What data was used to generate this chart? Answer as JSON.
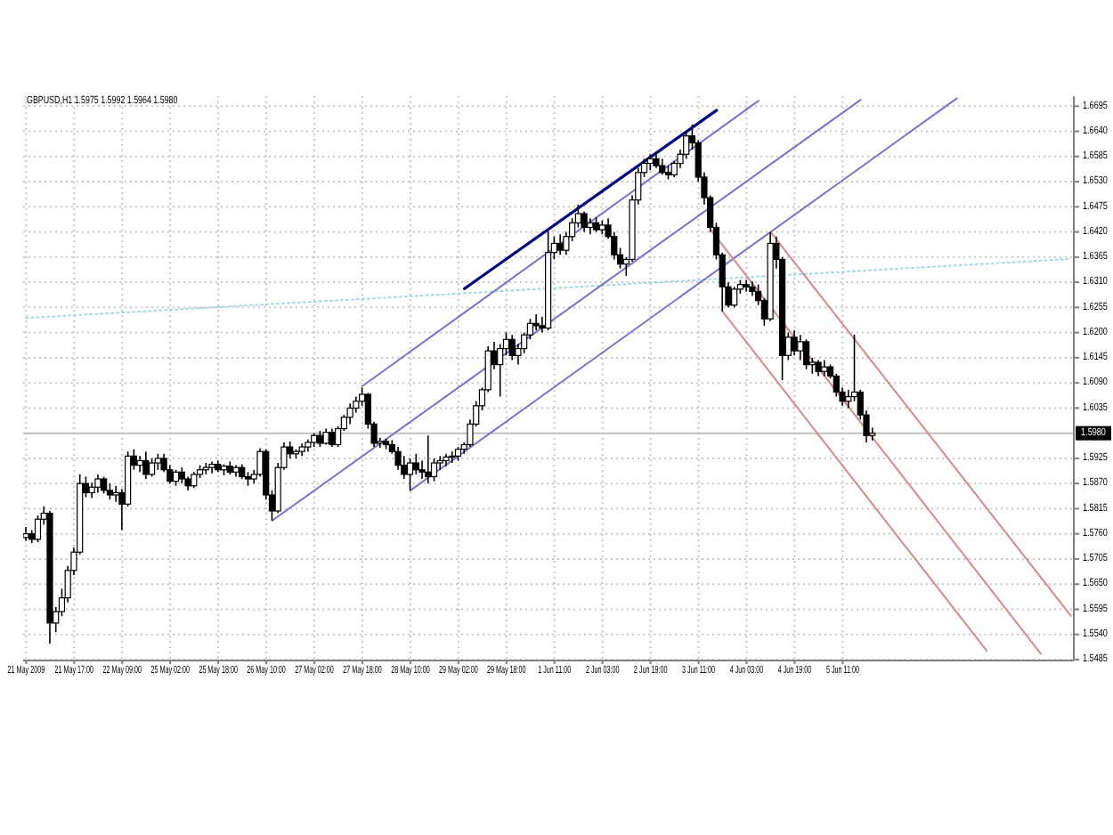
{
  "chart_data": {
    "type": "candlestick",
    "title": "GBPUSD,H1 1.5975 1.5992 1.5964 1.5980",
    "color": "#000000",
    "grid": true,
    "ylim": [
      1.5483,
      1.6717
    ],
    "yticks": [
      1.6695,
      {
        "value": 1.664,
        "label": "1.6640"
      },
      1.6585,
      {
        "value": 1.653,
        "label": "1.6530"
      },
      1.6475,
      {
        "value": 1.642,
        "label": "1.6420"
      },
      1.6365,
      {
        "value": 1.631,
        "label": "1.6310"
      },
      1.6255,
      {
        "value": 1.62,
        "label": "1.6200"
      },
      1.6145,
      {
        "value": 1.609,
        "label": "1.6090"
      },
      1.6035,
      1.5925,
      {
        "value": 1.587,
        "label": "1.5870"
      },
      1.5815,
      {
        "value": 1.576,
        "label": "1.5760"
      },
      1.5705,
      {
        "value": 1.565,
        "label": "1.5650"
      },
      1.5595,
      {
        "value": 1.554,
        "label": "1.5540"
      },
      1.5485
    ],
    "ref_lines": [
      {
        "axis": "y",
        "value": 1.598,
        "label": "1.5980",
        "color": "#c0c0c0"
      }
    ],
    "categories": [
      "21 May 2009",
      null,
      null,
      null,
      null,
      null,
      null,
      null,
      "21 May 17:00",
      null,
      null,
      null,
      null,
      null,
      null,
      null,
      "22 May 09:00",
      null,
      null,
      null,
      null,
      null,
      null,
      null,
      "25 May 02:00",
      null,
      null,
      null,
      null,
      null,
      null,
      null,
      "25 May 18:00",
      null,
      null,
      null,
      null,
      null,
      null,
      null,
      "26 May 10:00",
      null,
      null,
      null,
      null,
      null,
      null,
      null,
      "27 May 02:00",
      null,
      null,
      null,
      null,
      null,
      null,
      null,
      "27 May 18:00",
      null,
      null,
      null,
      null,
      null,
      null,
      null,
      "28 May 10:00",
      null,
      null,
      null,
      null,
      null,
      null,
      null,
      "29 May 02:00",
      null,
      null,
      null,
      null,
      null,
      null,
      null,
      "29 May 18:00",
      null,
      null,
      null,
      null,
      null,
      null,
      null,
      "1 Jun 11:00",
      null,
      null,
      null,
      null,
      null,
      null,
      null,
      "2 Jun 03:00",
      null,
      null,
      null,
      null,
      null,
      null,
      null,
      "2 Jun 19:00",
      null,
      null,
      null,
      null,
      null,
      null,
      null,
      "3 Jun 11:00",
      null,
      null,
      null,
      null,
      null,
      null,
      null,
      "4 Jun 03:00",
      null,
      null,
      null,
      null,
      null,
      null,
      null,
      "4 Jun 19:00",
      null,
      null,
      null,
      null,
      null,
      null,
      null,
      "5 Jun 11:00",
      null,
      null,
      null,
      null,
      null,
      null,
      null,
      null,
      null,
      null,
      null,
      null,
      null,
      null,
      null,
      null,
      null,
      null,
      null,
      null,
      null,
      null,
      null,
      null,
      null,
      null,
      null,
      null,
      null,
      null,
      null,
      null,
      null,
      null,
      null,
      null,
      null,
      null
    ],
    "ohlc": [
      [
        1.5752,
        1.5775,
        1.5745,
        1.576
      ],
      [
        1.576,
        1.5768,
        1.574,
        1.5748
      ],
      [
        1.5748,
        1.58,
        1.5742,
        1.5792
      ],
      [
        1.5792,
        1.582,
        1.578,
        1.5805
      ],
      [
        1.5805,
        1.581,
        1.552,
        1.5565
      ],
      [
        1.5565,
        1.56,
        1.5545,
        1.559
      ],
      [
        1.559,
        1.564,
        1.558,
        1.562
      ],
      [
        1.562,
        1.569,
        1.561,
        1.568
      ],
      [
        1.568,
        1.573,
        1.567,
        1.572
      ],
      [
        1.572,
        1.589,
        1.5715,
        1.587
      ],
      [
        1.587,
        1.5885,
        1.584,
        1.585
      ],
      [
        1.585,
        1.5872,
        1.5838,
        1.5862
      ],
      [
        1.5862,
        1.589,
        1.585,
        1.588
      ],
      [
        1.588,
        1.5885,
        1.5848,
        1.5855
      ],
      [
        1.5855,
        1.587,
        1.5835,
        1.5845
      ],
      [
        1.5845,
        1.5865,
        1.583,
        1.585
      ],
      [
        1.585,
        1.5858,
        1.5768,
        1.5825
      ],
      [
        1.5825,
        1.594,
        1.582,
        1.593
      ],
      [
        1.593,
        1.5945,
        1.59,
        1.591
      ],
      [
        1.591,
        1.593,
        1.5895,
        1.592
      ],
      [
        1.592,
        1.594,
        1.588,
        1.589
      ],
      [
        1.589,
        1.5925,
        1.5885,
        1.5915
      ],
      [
        1.5915,
        1.5935,
        1.59,
        1.5925
      ],
      [
        1.5925,
        1.5935,
        1.5895,
        1.59
      ],
      [
        1.59,
        1.591,
        1.587,
        1.5875
      ],
      [
        1.5875,
        1.59,
        1.5865,
        1.5895
      ],
      [
        1.5895,
        1.5905,
        1.587,
        1.588
      ],
      [
        1.588,
        1.5885,
        1.5855,
        1.5865
      ],
      [
        1.5865,
        1.5895,
        1.586,
        1.589
      ],
      [
        1.589,
        1.591,
        1.5882,
        1.59
      ],
      [
        1.59,
        1.5915,
        1.589,
        1.5905
      ],
      [
        1.5905,
        1.5918,
        1.5892,
        1.5912
      ],
      [
        1.5912,
        1.592,
        1.5895,
        1.59
      ],
      [
        1.59,
        1.5912,
        1.5888,
        1.5908
      ],
      [
        1.5908,
        1.5918,
        1.589,
        1.5895
      ],
      [
        1.5895,
        1.591,
        1.5885,
        1.5905
      ],
      [
        1.5905,
        1.5912,
        1.588,
        1.5885
      ],
      [
        1.5885,
        1.5895,
        1.5865,
        1.588
      ],
      [
        1.588,
        1.59,
        1.587,
        1.589
      ],
      [
        1.589,
        1.5947,
        1.5885,
        1.594
      ],
      [
        1.594,
        1.5945,
        1.5835,
        1.5845
      ],
      [
        1.5845,
        1.5855,
        1.5789,
        1.581
      ],
      [
        1.581,
        1.5915,
        1.5805,
        1.5905
      ],
      [
        1.5905,
        1.596,
        1.59,
        1.595
      ],
      [
        1.595,
        1.5962,
        1.5925,
        1.5935
      ],
      [
        1.5935,
        1.5945,
        1.5925,
        1.594
      ],
      [
        1.594,
        1.5958,
        1.593,
        1.595
      ],
      [
        1.595,
        1.5966,
        1.594,
        1.596
      ],
      [
        1.596,
        1.598,
        1.595,
        1.5975
      ],
      [
        1.5975,
        1.5985,
        1.595,
        1.5958
      ],
      [
        1.5958,
        1.599,
        1.5955,
        1.5982
      ],
      [
        1.5982,
        1.599,
        1.595,
        1.5955
      ],
      [
        1.5955,
        1.5995,
        1.595,
        1.599
      ],
      [
        1.599,
        1.602,
        1.5985,
        1.6015
      ],
      [
        1.6015,
        1.6045,
        1.6,
        1.6035
      ],
      [
        1.6035,
        1.606,
        1.6025,
        1.605
      ],
      [
        1.605,
        1.608,
        1.604,
        1.6065
      ],
      [
        1.6065,
        1.6068,
        1.599,
        1.6
      ],
      [
        1.6,
        1.6005,
        1.595,
        1.5958
      ],
      [
        1.5958,
        1.597,
        1.5948,
        1.5962
      ],
      [
        1.5962,
        1.5968,
        1.5945,
        1.5955
      ],
      [
        1.5955,
        1.5965,
        1.5935,
        1.594
      ],
      [
        1.594,
        1.595,
        1.59,
        1.591
      ],
      [
        1.591,
        1.593,
        1.588,
        1.589
      ],
      [
        1.589,
        1.5925,
        1.5855,
        1.5915
      ],
      [
        1.5915,
        1.5935,
        1.589,
        1.59
      ],
      [
        1.59,
        1.592,
        1.588,
        1.5895
      ],
      [
        1.5895,
        1.5975,
        1.587,
        1.5885
      ],
      [
        1.5885,
        1.5925,
        1.5875,
        1.5915
      ],
      [
        1.5915,
        1.593,
        1.59,
        1.592
      ],
      [
        1.592,
        1.5935,
        1.5908,
        1.5928
      ],
      [
        1.5928,
        1.594,
        1.5915,
        1.593
      ],
      [
        1.593,
        1.595,
        1.592,
        1.5945
      ],
      [
        1.5945,
        1.596,
        1.5935,
        1.5955
      ],
      [
        1.5955,
        1.601,
        1.595,
        1.6
      ],
      [
        1.6,
        1.605,
        1.5995,
        1.604
      ],
      [
        1.604,
        1.608,
        1.603,
        1.6075
      ],
      [
        1.6075,
        1.617,
        1.607,
        1.616
      ],
      [
        1.616,
        1.618,
        1.612,
        1.613
      ],
      [
        1.613,
        1.6175,
        1.606,
        1.6165
      ],
      [
        1.6165,
        1.62,
        1.615,
        1.6185
      ],
      [
        1.6185,
        1.6195,
        1.614,
        1.615
      ],
      [
        1.615,
        1.6175,
        1.613,
        1.6165
      ],
      [
        1.6165,
        1.62,
        1.6155,
        1.6195
      ],
      [
        1.6195,
        1.623,
        1.6185,
        1.622
      ],
      [
        1.622,
        1.624,
        1.6205,
        1.6215
      ],
      [
        1.6215,
        1.6235,
        1.62,
        1.621
      ],
      [
        1.621,
        1.6422,
        1.6205,
        1.6375
      ],
      [
        1.6375,
        1.641,
        1.636,
        1.6395
      ],
      [
        1.6395,
        1.6415,
        1.637,
        1.638
      ],
      [
        1.638,
        1.642,
        1.637,
        1.641
      ],
      [
        1.641,
        1.645,
        1.64,
        1.644
      ],
      [
        1.644,
        1.648,
        1.643,
        1.646
      ],
      [
        1.646,
        1.6465,
        1.642,
        1.643
      ],
      [
        1.643,
        1.645,
        1.6415,
        1.644
      ],
      [
        1.644,
        1.6452,
        1.642,
        1.6425
      ],
      [
        1.6425,
        1.6445,
        1.6415,
        1.6435
      ],
      [
        1.6435,
        1.645,
        1.6405,
        1.641
      ],
      [
        1.641,
        1.642,
        1.636,
        1.637
      ],
      [
        1.637,
        1.6385,
        1.634,
        1.635
      ],
      [
        1.635,
        1.6365,
        1.6324,
        1.636
      ],
      [
        1.636,
        1.65,
        1.6355,
        1.649
      ],
      [
        1.649,
        1.656,
        1.648,
        1.655
      ],
      [
        1.655,
        1.658,
        1.654,
        1.657
      ],
      [
        1.657,
        1.659,
        1.6555,
        1.658
      ],
      [
        1.658,
        1.6595,
        1.656,
        1.6565
      ],
      [
        1.6565,
        1.658,
        1.6545,
        1.655
      ],
      [
        1.655,
        1.6565,
        1.6535,
        1.6545
      ],
      [
        1.6545,
        1.6575,
        1.654,
        1.657
      ],
      [
        1.657,
        1.66,
        1.656,
        1.659
      ],
      [
        1.659,
        1.664,
        1.658,
        1.663
      ],
      [
        1.663,
        1.6655,
        1.66,
        1.6615
      ],
      [
        1.6615,
        1.662,
        1.653,
        1.654
      ],
      [
        1.654,
        1.655,
        1.648,
        1.6495
      ],
      [
        1.6495,
        1.65,
        1.642,
        1.643
      ],
      [
        1.643,
        1.644,
        1.636,
        1.637
      ],
      [
        1.637,
        1.6375,
        1.6246,
        1.63
      ],
      [
        1.63,
        1.631,
        1.6255,
        1.626
      ],
      [
        1.626,
        1.63,
        1.6255,
        1.6295
      ],
      [
        1.6295,
        1.6315,
        1.6285,
        1.6305
      ],
      [
        1.6305,
        1.6315,
        1.629,
        1.63
      ],
      [
        1.63,
        1.6312,
        1.628,
        1.629
      ],
      [
        1.629,
        1.6305,
        1.626,
        1.627
      ],
      [
        1.627,
        1.6275,
        1.6215,
        1.623
      ],
      [
        1.623,
        1.642,
        1.6225,
        1.6395
      ],
      [
        1.6395,
        1.641,
        1.634,
        1.636
      ],
      [
        1.636,
        1.6365,
        1.6096,
        1.615
      ],
      [
        1.615,
        1.62,
        1.614,
        1.619
      ],
      [
        1.619,
        1.6205,
        1.615,
        1.616
      ],
      [
        1.616,
        1.6195,
        1.614,
        1.618
      ],
      [
        1.618,
        1.6185,
        1.612,
        1.613
      ],
      [
        1.613,
        1.6145,
        1.611,
        1.6135
      ],
      [
        1.6135,
        1.614,
        1.6105,
        1.6115
      ],
      [
        1.6115,
        1.614,
        1.6105,
        1.6125
      ],
      [
        1.6125,
        1.613,
        1.61,
        1.6105
      ],
      [
        1.6105,
        1.611,
        1.606,
        1.607
      ],
      [
        1.607,
        1.608,
        1.604,
        1.605
      ],
      [
        1.605,
        1.6075,
        1.6035,
        1.606
      ],
      [
        1.606,
        1.6196,
        1.605,
        1.607
      ],
      [
        1.607,
        1.6075,
        1.601,
        1.602
      ],
      [
        1.602,
        1.603,
        1.596,
        1.5975
      ],
      [
        1.5975,
        1.5992,
        1.5964,
        1.598
      ],
      null,
      null,
      null,
      null,
      null,
      null,
      null,
      null,
      null,
      null,
      null,
      null,
      null,
      null,
      null,
      null,
      null,
      null,
      null,
      null,
      null,
      null,
      null,
      null,
      null,
      null,
      null,
      null,
      null,
      null,
      null,
      null,
      null
    ],
    "series": [
      {
        "type": "line",
        "color": "#9fd8e0",
        "line_style": "dotted",
        "values": [
          1.6232,
          null,
          null,
          null,
          null,
          null,
          null,
          null,
          null,
          null,
          null,
          null,
          null,
          null,
          null,
          null,
          null,
          null,
          null,
          null,
          null,
          null,
          null,
          null,
          null,
          null,
          null,
          null,
          null,
          null,
          null,
          null,
          null,
          null,
          null,
          null,
          null,
          null,
          null,
          null,
          null,
          null,
          null,
          null,
          null,
          null,
          null,
          null,
          null,
          null,
          null,
          null,
          null,
          null,
          null,
          null,
          null,
          null,
          null,
          null,
          null,
          null,
          null,
          null,
          null,
          null,
          null,
          null,
          null,
          null,
          null,
          null,
          null,
          null,
          null,
          null,
          null,
          null,
          null,
          null,
          null,
          null,
          null,
          null,
          null,
          null,
          null,
          null,
          null,
          null,
          null,
          null,
          null,
          null,
          null,
          null,
          null,
          null,
          null,
          null,
          null,
          null,
          null,
          null,
          null,
          null,
          null,
          null,
          null,
          null,
          null,
          null,
          null,
          null,
          null,
          null,
          null,
          null,
          null,
          null,
          null,
          null,
          null,
          null,
          null,
          null,
          null,
          null,
          null,
          null,
          null,
          null,
          null,
          null,
          null,
          null,
          null,
          null,
          null,
          null,
          null,
          null,
          null,
          null,
          null,
          null,
          null,
          null,
          null,
          null,
          null,
          null,
          null,
          null,
          null,
          null,
          null,
          null,
          null,
          null,
          null,
          null,
          null,
          null,
          null,
          null,
          null,
          null,
          null,
          null,
          null,
          null,
          null,
          null,
          1.6361
        ]
      },
      {
        "type": "line",
        "color": "#000080",
        "values": [
          null,
          null,
          null,
          null,
          null,
          null,
          null,
          null,
          null,
          null,
          null,
          null,
          null,
          null,
          null,
          null,
          null,
          null,
          null,
          null,
          null,
          null,
          null,
          null,
          null,
          null,
          null,
          null,
          null,
          null,
          null,
          null,
          null,
          null,
          null,
          null,
          null,
          null,
          null,
          null,
          null,
          null,
          null,
          null,
          null,
          null,
          null,
          null,
          null,
          null,
          null,
          null,
          null,
          null,
          null,
          null,
          null,
          null,
          null,
          null,
          null,
          null,
          null,
          null,
          null,
          null,
          null,
          null,
          null,
          null,
          null,
          null,
          null,
          1.6296,
          null,
          null,
          null,
          null,
          null,
          null,
          null,
          null,
          null,
          null,
          null,
          null,
          null,
          null,
          null,
          null,
          null,
          null,
          null,
          null,
          null,
          null,
          null,
          null,
          null,
          null,
          null,
          null,
          null,
          null,
          null,
          null,
          null,
          null,
          null,
          null,
          null,
          null,
          null,
          null,
          null,
          1.6686,
          null,
          null,
          null,
          null,
          null,
          null,
          null,
          null,
          null,
          null,
          null,
          null,
          null,
          null,
          null,
          null,
          null,
          null,
          null,
          null,
          null,
          null,
          null,
          null,
          null,
          null,
          null,
          null,
          null,
          null,
          null,
          null,
          null,
          null,
          null,
          null,
          null,
          null,
          null,
          null,
          null,
          null,
          null,
          null,
          null,
          null,
          null,
          null,
          null,
          null,
          null,
          null,
          null,
          null,
          null,
          null,
          null,
          null,
          null
        ]
      },
      {
        "type": "line",
        "color": "#7474d0",
        "values": [
          null,
          null,
          null,
          null,
          null,
          null,
          null,
          null,
          null,
          null,
          null,
          null,
          null,
          null,
          null,
          null,
          null,
          null,
          null,
          null,
          null,
          null,
          null,
          null,
          null,
          null,
          null,
          null,
          null,
          null,
          null,
          null,
          null,
          null,
          null,
          null,
          null,
          null,
          null,
          null,
          null,
          null,
          null,
          null,
          null,
          null,
          null,
          null,
          null,
          null,
          null,
          null,
          null,
          null,
          null,
          null,
          1.6083,
          null,
          null,
          null,
          null,
          null,
          null,
          null,
          null,
          null,
          null,
          null,
          null,
          null,
          null,
          null,
          null,
          null,
          null,
          null,
          null,
          null,
          null,
          null,
          null,
          null,
          null,
          null,
          null,
          null,
          null,
          null,
          null,
          null,
          null,
          null,
          null,
          null,
          null,
          null,
          null,
          null,
          null,
          null,
          null,
          null,
          null,
          null,
          null,
          null,
          null,
          null,
          null,
          null,
          null,
          null,
          null,
          null,
          null,
          null,
          null,
          null,
          null,
          null,
          null,
          null,
          1.6707,
          null,
          null,
          null,
          null,
          null,
          null,
          null,
          null,
          null,
          null,
          null,
          null,
          null,
          null,
          null,
          null,
          null,
          null,
          null,
          null,
          null,
          null,
          null,
          null,
          null,
          null,
          null,
          null,
          null,
          null,
          null,
          null,
          null,
          null,
          null,
          null,
          null,
          null,
          null,
          null,
          null,
          null,
          null,
          null,
          null,
          null,
          null,
          null,
          null,
          null,
          null,
          null
        ]
      },
      {
        "type": "line",
        "color": "#7474d0",
        "values": [
          null,
          null,
          null,
          null,
          null,
          null,
          null,
          null,
          null,
          null,
          null,
          null,
          null,
          null,
          null,
          null,
          null,
          null,
          null,
          null,
          null,
          null,
          null,
          null,
          null,
          null,
          null,
          null,
          null,
          null,
          null,
          null,
          null,
          null,
          null,
          null,
          null,
          null,
          null,
          null,
          null,
          1.5789,
          null,
          null,
          null,
          null,
          null,
          null,
          null,
          null,
          null,
          null,
          null,
          null,
          null,
          null,
          null,
          null,
          null,
          null,
          null,
          null,
          null,
          null,
          null,
          null,
          null,
          null,
          null,
          null,
          null,
          null,
          null,
          null,
          null,
          null,
          null,
          null,
          null,
          null,
          null,
          null,
          null,
          null,
          null,
          null,
          null,
          null,
          null,
          null,
          null,
          null,
          null,
          null,
          null,
          null,
          null,
          null,
          null,
          null,
          null,
          null,
          null,
          null,
          null,
          null,
          null,
          null,
          null,
          null,
          null,
          null,
          null,
          null,
          null,
          null,
          null,
          null,
          null,
          null,
          null,
          null,
          null,
          null,
          null,
          null,
          null,
          null,
          null,
          null,
          null,
          null,
          null,
          null,
          null,
          null,
          null,
          null,
          null,
          1.6709,
          null,
          null,
          null,
          null,
          null,
          null,
          null,
          null,
          null,
          null,
          null,
          null,
          null,
          null,
          null,
          null,
          null,
          null,
          null,
          null,
          null,
          null,
          null,
          null,
          null,
          null,
          null,
          null,
          null,
          null,
          null,
          null,
          null,
          null,
          null
        ]
      },
      {
        "type": "line",
        "color": "#7474d0",
        "values": [
          null,
          null,
          null,
          null,
          null,
          null,
          null,
          null,
          null,
          null,
          null,
          null,
          null,
          null,
          null,
          null,
          null,
          null,
          null,
          null,
          null,
          null,
          null,
          null,
          null,
          null,
          null,
          null,
          null,
          null,
          null,
          null,
          null,
          null,
          null,
          null,
          null,
          null,
          null,
          null,
          null,
          null,
          null,
          null,
          null,
          null,
          null,
          null,
          null,
          null,
          null,
          null,
          null,
          null,
          null,
          null,
          null,
          null,
          null,
          null,
          null,
          null,
          null,
          null,
          1.5855,
          null,
          null,
          null,
          null,
          null,
          null,
          null,
          null,
          null,
          null,
          null,
          null,
          null,
          null,
          null,
          null,
          null,
          null,
          null,
          null,
          null,
          null,
          null,
          null,
          null,
          null,
          null,
          null,
          null,
          null,
          null,
          null,
          null,
          null,
          null,
          null,
          null,
          null,
          null,
          null,
          null,
          null,
          null,
          null,
          null,
          null,
          null,
          null,
          null,
          null,
          null,
          null,
          null,
          null,
          null,
          null,
          null,
          null,
          null,
          null,
          null,
          null,
          null,
          null,
          null,
          null,
          null,
          null,
          null,
          null,
          null,
          null,
          null,
          null,
          null,
          null,
          null,
          null,
          null,
          null,
          null,
          null,
          null,
          null,
          null,
          null,
          null,
          null,
          null,
          null,
          1.6712,
          null,
          null,
          null,
          null,
          null,
          null,
          null,
          null,
          null,
          null,
          null,
          null,
          null,
          null,
          null,
          null,
          null,
          null,
          null
        ]
      },
      {
        "type": "line",
        "color": "#d48a8a",
        "values": [
          null,
          null,
          null,
          null,
          null,
          null,
          null,
          null,
          null,
          null,
          null,
          null,
          null,
          null,
          null,
          null,
          null,
          null,
          null,
          null,
          null,
          null,
          null,
          null,
          null,
          null,
          null,
          null,
          null,
          null,
          null,
          null,
          null,
          null,
          null,
          null,
          null,
          null,
          null,
          null,
          null,
          null,
          null,
          null,
          null,
          null,
          null,
          null,
          null,
          null,
          null,
          null,
          null,
          null,
          null,
          null,
          null,
          null,
          null,
          null,
          null,
          null,
          null,
          null,
          null,
          null,
          null,
          null,
          null,
          null,
          null,
          null,
          null,
          null,
          null,
          null,
          null,
          null,
          null,
          null,
          null,
          null,
          null,
          null,
          null,
          null,
          null,
          null,
          null,
          null,
          null,
          null,
          null,
          null,
          null,
          null,
          null,
          null,
          null,
          null,
          null,
          null,
          null,
          null,
          null,
          null,
          null,
          null,
          null,
          null,
          null,
          null,
          null,
          null,
          null,
          null,
          null,
          null,
          null,
          null,
          null,
          null,
          null,
          null,
          1.642,
          null,
          null,
          null,
          null,
          null,
          null,
          null,
          null,
          null,
          null,
          null,
          null,
          null,
          null,
          null,
          null,
          null,
          null,
          null,
          null,
          null,
          null,
          null,
          null,
          null,
          null,
          null,
          null,
          null,
          null,
          null,
          null,
          null,
          null,
          null,
          null,
          null,
          null,
          null,
          null,
          null,
          null,
          null,
          null,
          null,
          null,
          null,
          null,
          null,
          1.5581
        ]
      },
      {
        "type": "line",
        "color": "#d48a8a",
        "values": [
          null,
          null,
          null,
          null,
          null,
          null,
          null,
          null,
          null,
          null,
          null,
          null,
          null,
          null,
          null,
          null,
          null,
          null,
          null,
          null,
          null,
          null,
          null,
          null,
          null,
          null,
          null,
          null,
          null,
          null,
          null,
          null,
          null,
          null,
          null,
          null,
          null,
          null,
          null,
          null,
          null,
          null,
          null,
          null,
          null,
          null,
          null,
          null,
          null,
          null,
          null,
          null,
          null,
          null,
          null,
          null,
          null,
          null,
          null,
          null,
          null,
          null,
          null,
          null,
          null,
          null,
          null,
          null,
          null,
          null,
          null,
          null,
          null,
          null,
          null,
          null,
          null,
          null,
          null,
          null,
          null,
          null,
          null,
          null,
          null,
          null,
          null,
          null,
          null,
          null,
          null,
          null,
          null,
          null,
          null,
          null,
          null,
          null,
          null,
          null,
          null,
          null,
          null,
          null,
          null,
          null,
          null,
          null,
          null,
          null,
          null,
          null,
          null,
          null,
          1.6425,
          null,
          null,
          null,
          null,
          null,
          null,
          null,
          null,
          null,
          null,
          null,
          null,
          null,
          null,
          null,
          null,
          null,
          null,
          null,
          null,
          null,
          null,
          null,
          null,
          null,
          null,
          null,
          null,
          null,
          null,
          null,
          null,
          null,
          null,
          null,
          null,
          null,
          null,
          null,
          null,
          null,
          null,
          null,
          null,
          null,
          null,
          null,
          null,
          null,
          null,
          null,
          null,
          null,
          null,
          1.5498,
          null,
          null,
          null,
          null,
          null
        ]
      },
      {
        "type": "line",
        "color": "#d48a8a",
        "values": [
          null,
          null,
          null,
          null,
          null,
          null,
          null,
          null,
          null,
          null,
          null,
          null,
          null,
          null,
          null,
          null,
          null,
          null,
          null,
          null,
          null,
          null,
          null,
          null,
          null,
          null,
          null,
          null,
          null,
          null,
          null,
          null,
          null,
          null,
          null,
          null,
          null,
          null,
          null,
          null,
          null,
          null,
          null,
          null,
          null,
          null,
          null,
          null,
          null,
          null,
          null,
          null,
          null,
          null,
          null,
          null,
          null,
          null,
          null,
          null,
          null,
          null,
          null,
          null,
          null,
          null,
          null,
          null,
          null,
          null,
          null,
          null,
          null,
          null,
          null,
          null,
          null,
          null,
          null,
          null,
          null,
          null,
          null,
          null,
          null,
          null,
          null,
          null,
          null,
          null,
          null,
          null,
          null,
          null,
          null,
          null,
          null,
          null,
          null,
          null,
          null,
          null,
          null,
          null,
          null,
          null,
          null,
          null,
          null,
          null,
          null,
          null,
          null,
          null,
          null,
          null,
          1.6246,
          null,
          null,
          null,
          null,
          null,
          null,
          null,
          null,
          null,
          null,
          null,
          null,
          null,
          null,
          null,
          null,
          null,
          null,
          null,
          null,
          null,
          null,
          null,
          null,
          null,
          null,
          null,
          null,
          null,
          null,
          null,
          null,
          null,
          null,
          null,
          null,
          null,
          null,
          null,
          null,
          null,
          null,
          null,
          1.5504,
          null,
          null,
          null,
          null,
          null,
          null,
          null,
          null,
          null,
          null,
          null,
          null,
          null,
          null
        ]
      }
    ]
  }
}
